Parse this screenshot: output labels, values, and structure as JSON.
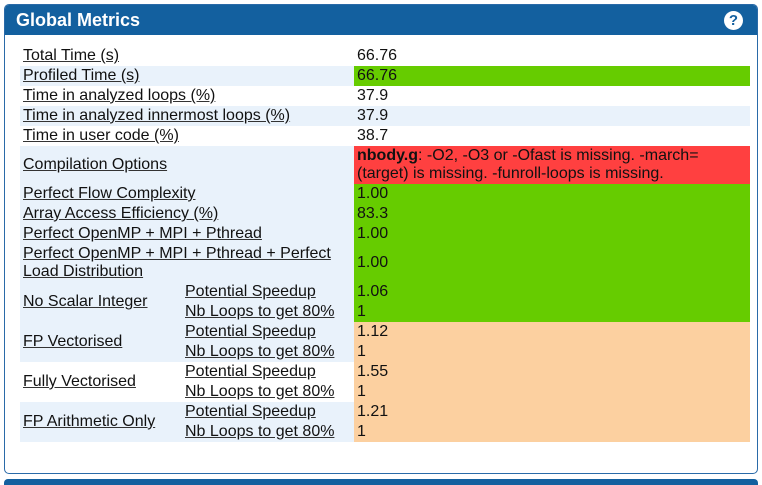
{
  "panel": {
    "title": "Global Metrics",
    "help_icon": "?"
  },
  "rows": {
    "total_time": {
      "label": "Total Time (s)",
      "value": "66.76"
    },
    "profiled_time": {
      "label": "Profiled Time (s)",
      "value": "66.76"
    },
    "analyzed_loops": {
      "label": "Time in analyzed loops (%)",
      "value": "37.9"
    },
    "innermost_loops": {
      "label": "Time in analyzed innermost loops (%)",
      "value": "37.9"
    },
    "user_code": {
      "label": "Time in user code (%)",
      "value": "38.7"
    },
    "compilation": {
      "label": "Compilation Options",
      "value_bold": "nbody.g",
      "value_rest": ": -O2, -O3 or -Ofast is missing. -march=(target) is missing. -funroll-loops is missing."
    },
    "flow_complexity": {
      "label": "Perfect Flow Complexity",
      "value": "1.00"
    },
    "array_access": {
      "label": "Array Access Efficiency (%)",
      "value": "83.3"
    },
    "openmp_mpi": {
      "label": "Perfect OpenMP + MPI + Pthread",
      "value": "1.00"
    },
    "openmp_load": {
      "label": "Perfect OpenMP + MPI + Pthread + Perfect Load Distribution",
      "value": "1.00"
    }
  },
  "groups": [
    {
      "label": "No Scalar Integer",
      "speedup_label": "Potential Speedup",
      "speedup": "1.06",
      "loops_label": "Nb Loops to get 80%",
      "loops": "1"
    },
    {
      "label": "FP Vectorised",
      "speedup_label": "Potential Speedup",
      "speedup": "1.12",
      "loops_label": "Nb Loops to get 80%",
      "loops": "1"
    },
    {
      "label": "Fully Vectorised",
      "speedup_label": "Potential Speedup",
      "speedup": "1.55",
      "loops_label": "Nb Loops to get 80%",
      "loops": "1"
    },
    {
      "label": "FP Arithmetic Only",
      "speedup_label": "Potential Speedup",
      "speedup": "1.21",
      "loops_label": "Nb Loops to get 80%",
      "loops": "1"
    }
  ],
  "colors": {
    "header": "#13609f",
    "label_bg": "#e9f2fb",
    "good": "#66cc00",
    "bad": "#ff4040",
    "warning": "#fcd0a0"
  }
}
